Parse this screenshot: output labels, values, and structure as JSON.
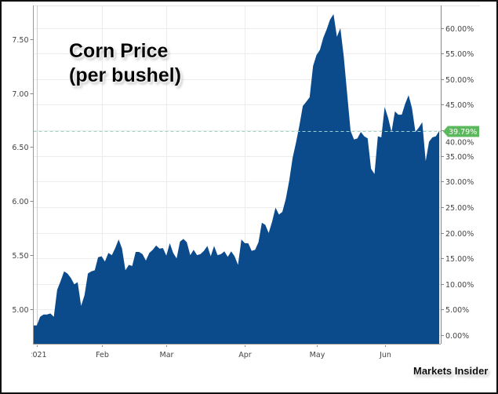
{
  "chart_data": {
    "type": "area",
    "title_line1": "Corn Price",
    "title_line2": "(per bushel)",
    "source_label": "Markets Insider",
    "fill_color": "#0b4a8b",
    "badge_color": "#5cb85c",
    "current_change_label": "39.79%",
    "current_change_pct": 39.79,
    "grid": true,
    "ylim": [
      4.68,
      7.81
    ],
    "y_ticks": [
      5.0,
      5.5,
      6.0,
      6.5,
      7.0,
      7.5
    ],
    "y_tick_labels": [
      "5.00",
      "5.50",
      "6.00",
      "6.50",
      "7.00",
      "7.50"
    ],
    "y2lim": [
      -1.7,
      64.4
    ],
    "y2_ticks": [
      0,
      5,
      10,
      15,
      20,
      25,
      30,
      35,
      40,
      45,
      50,
      55,
      60
    ],
    "y2_tick_labels": [
      "0.00%",
      "5.00%",
      "10.00%",
      "15.00%",
      "20.00%",
      "25.00%",
      "30.00%",
      "35.00%",
      "40.00%",
      "45.00%",
      "50.00%",
      "55.00%",
      "60.00%"
    ],
    "x_ticks": [
      "2021-01-04",
      "2021-02-01",
      "2021-03-01",
      "2021-04-01",
      "2021-05-03",
      "2021-06-01"
    ],
    "x_tick_labels": [
      "2021",
      "Feb",
      "Mar",
      "Apr",
      "May",
      "Jun"
    ],
    "x": [
      "2020-12-31",
      "2021-01-04",
      "2021-01-05",
      "2021-01-06",
      "2021-01-07",
      "2021-01-08",
      "2021-01-11",
      "2021-01-12",
      "2021-01-13",
      "2021-01-14",
      "2021-01-15",
      "2021-01-19",
      "2021-01-20",
      "2021-01-21",
      "2021-01-22",
      "2021-01-25",
      "2021-01-26",
      "2021-01-27",
      "2021-01-28",
      "2021-01-29",
      "2021-02-01",
      "2021-02-02",
      "2021-02-03",
      "2021-02-04",
      "2021-02-05",
      "2021-02-08",
      "2021-02-09",
      "2021-02-10",
      "2021-02-11",
      "2021-02-12",
      "2021-02-16",
      "2021-02-17",
      "2021-02-18",
      "2021-02-19",
      "2021-02-22",
      "2021-02-23",
      "2021-02-24",
      "2021-02-25",
      "2021-02-26",
      "2021-03-01",
      "2021-03-02",
      "2021-03-03",
      "2021-03-04",
      "2021-03-05",
      "2021-03-08",
      "2021-03-09",
      "2021-03-10",
      "2021-03-11",
      "2021-03-12",
      "2021-03-15",
      "2021-03-16",
      "2021-03-17",
      "2021-03-18",
      "2021-03-19",
      "2021-03-22",
      "2021-03-23",
      "2021-03-24",
      "2021-03-25",
      "2021-03-26",
      "2021-03-29",
      "2021-03-30",
      "2021-03-31",
      "2021-04-01",
      "2021-04-05",
      "2021-04-06",
      "2021-04-07",
      "2021-04-08",
      "2021-04-09",
      "2021-04-12",
      "2021-04-13",
      "2021-04-14",
      "2021-04-15",
      "2021-04-16",
      "2021-04-19",
      "2021-04-20",
      "2021-04-21",
      "2021-04-22",
      "2021-04-23",
      "2021-04-26",
      "2021-04-27",
      "2021-04-28",
      "2021-04-29",
      "2021-04-30",
      "2021-05-03",
      "2021-05-04",
      "2021-05-05",
      "2021-05-06",
      "2021-05-07",
      "2021-05-10",
      "2021-05-11",
      "2021-05-12",
      "2021-05-13",
      "2021-05-14",
      "2021-05-17",
      "2021-05-18",
      "2021-05-19",
      "2021-05-20",
      "2021-05-21",
      "2021-05-24",
      "2021-05-25",
      "2021-05-26",
      "2021-05-27",
      "2021-05-28",
      "2021-06-01",
      "2021-06-02",
      "2021-06-03",
      "2021-06-04",
      "2021-06-07",
      "2021-06-08",
      "2021-06-09",
      "2021-06-10",
      "2021-06-11",
      "2021-06-14",
      "2021-06-15",
      "2021-06-16",
      "2021-06-17",
      "2021-06-18",
      "2021-06-21",
      "2021-06-22",
      "2021-06-23"
    ],
    "values": [
      4.85,
      4.85,
      4.93,
      4.95,
      4.95,
      4.96,
      4.93,
      5.18,
      5.26,
      5.35,
      5.33,
      5.29,
      5.23,
      5.25,
      5.03,
      5.13,
      5.33,
      5.35,
      5.36,
      5.48,
      5.49,
      5.44,
      5.52,
      5.5,
      5.565,
      5.645,
      5.56,
      5.36,
      5.41,
      5.4,
      5.53,
      5.53,
      5.51,
      5.45,
      5.52,
      5.55,
      5.59,
      5.56,
      5.565,
      5.495,
      5.61,
      5.52,
      5.47,
      5.625,
      5.65,
      5.62,
      5.5,
      5.55,
      5.5,
      5.51,
      5.54,
      5.585,
      5.49,
      5.585,
      5.5,
      5.51,
      5.535,
      5.485,
      5.535,
      5.49,
      5.41,
      5.645,
      5.61,
      5.61,
      5.54,
      5.55,
      5.62,
      5.8,
      5.78,
      5.705,
      5.81,
      5.94,
      5.875,
      5.9,
      6.02,
      6.19,
      6.4,
      6.54,
      6.7,
      6.88,
      6.92,
      6.96,
      7.25,
      7.35,
      7.4,
      7.51,
      7.59,
      7.68,
      7.73,
      7.52,
      7.6,
      7.34,
      6.99,
      6.65,
      6.57,
      6.58,
      6.64,
      6.6,
      6.58,
      6.3,
      6.25,
      6.6,
      6.59,
      6.87,
      6.77,
      6.64,
      6.83,
      6.8,
      6.8,
      6.9,
      6.98,
      6.86,
      6.64,
      6.68,
      6.73,
      6.37,
      6.55,
      6.59,
      6.6,
      6.65
    ]
  }
}
